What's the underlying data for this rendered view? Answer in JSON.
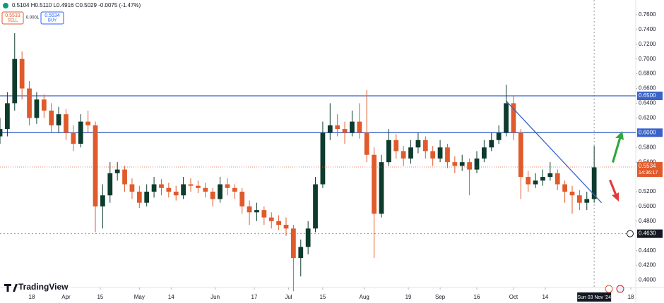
{
  "chart_data": {
    "type": "candlestick",
    "header": {
      "ohlc": "0.5104 H0.5110 L0.4916 C0.5029 -0.0075 (-1.47%)",
      "sell_price": "0.5533",
      "sell_label": "SELL",
      "spread": "0.0001",
      "buy_price": "0.5534",
      "buy_label": "BUY"
    },
    "brand": "TradingView",
    "up_color": "#0d3b2e",
    "down_color": "#e05a2b",
    "line_color": "#3a62c9",
    "xlim": [
      -13,
      247
    ],
    "ylim": [
      0.39,
      0.78
    ],
    "grid": false,
    "xticks": [
      {
        "value": 0,
        "label": "18"
      },
      {
        "value": 14,
        "label": "Apr"
      },
      {
        "value": 28,
        "label": "15"
      },
      {
        "value": 44,
        "label": "May"
      },
      {
        "value": 57,
        "label": "14"
      },
      {
        "value": 75,
        "label": "Jun"
      },
      {
        "value": 91,
        "label": "17"
      },
      {
        "value": 105,
        "label": "Jul"
      },
      {
        "value": 119,
        "label": "15"
      },
      {
        "value": 136,
        "label": "Aug"
      },
      {
        "value": 154,
        "label": "19"
      },
      {
        "value": 167,
        "label": "Sep"
      },
      {
        "value": 182,
        "label": "16"
      },
      {
        "value": 197,
        "label": "Oct"
      },
      {
        "value": 210,
        "label": "14"
      },
      {
        "value": 245,
        "label": "18"
      }
    ],
    "crosshair": {
      "value": 230,
      "label": "Sun 03 Nov '24"
    },
    "yticks": [
      {
        "value": 0.4,
        "label": "0.4000"
      },
      {
        "value": 0.42,
        "label": "0.4200"
      },
      {
        "value": 0.44,
        "label": "0.4400"
      },
      {
        "value": 0.48,
        "label": "0.4800"
      },
      {
        "value": 0.5,
        "label": "0.5000"
      },
      {
        "value": 0.52,
        "label": "0.5200"
      },
      {
        "value": 0.56,
        "label": "0.5600"
      },
      {
        "value": 0.58,
        "label": "0.5800"
      },
      {
        "value": 0.62,
        "label": "0.6200"
      },
      {
        "value": 0.64,
        "label": "0.6400"
      },
      {
        "value": 0.66,
        "label": "0.6600"
      },
      {
        "value": 0.68,
        "label": "0.6800"
      },
      {
        "value": 0.7,
        "label": "0.7000"
      },
      {
        "value": 0.72,
        "label": "0.7200"
      },
      {
        "value": 0.74,
        "label": "0.7400"
      },
      {
        "value": 0.76,
        "label": "0.7600"
      }
    ],
    "hlines": [
      {
        "value": 0.65,
        "label": "0.6500"
      },
      {
        "value": 0.6,
        "label": "0.6000"
      }
    ],
    "marker_line": {
      "value": 0.463,
      "label": "0.4630"
    },
    "last_price": {
      "value": 0.5534,
      "label": "0.5534",
      "countdown": "14:36:17"
    },
    "trendline": {
      "x": [
        194,
        233
      ],
      "y": [
        0.643,
        0.505
      ]
    },
    "candles": {
      "x": [
        -13,
        -10,
        -7,
        -4,
        -1,
        2,
        5,
        8,
        11,
        14,
        17,
        20,
        23,
        26,
        29,
        32,
        35,
        38,
        41,
        44,
        47,
        50,
        53,
        56,
        59,
        62,
        65,
        68,
        71,
        74,
        77,
        80,
        83,
        86,
        89,
        92,
        95,
        98,
        101,
        104,
        107,
        110,
        113,
        116,
        119,
        122,
        125,
        128,
        131,
        134,
        137,
        140,
        143,
        146,
        149,
        152,
        155,
        158,
        161,
        164,
        167,
        170,
        173,
        176,
        179,
        182,
        185,
        188,
        191,
        194,
        197,
        200,
        203,
        206,
        209,
        212,
        215,
        218,
        221,
        224,
        227,
        230
      ],
      "open": [
        0.595,
        0.605,
        0.64,
        0.7,
        0.66,
        0.62,
        0.645,
        0.63,
        0.61,
        0.625,
        0.6,
        0.585,
        0.615,
        0.61,
        0.5,
        0.515,
        0.545,
        0.55,
        0.53,
        0.52,
        0.505,
        0.52,
        0.53,
        0.525,
        0.52,
        0.515,
        0.53,
        0.528,
        0.525,
        0.52,
        0.51,
        0.53,
        0.525,
        0.52,
        0.5,
        0.492,
        0.495,
        0.485,
        0.48,
        0.475,
        0.47,
        0.43,
        0.445,
        0.47,
        0.53,
        0.6,
        0.61,
        0.605,
        0.6,
        0.615,
        0.6,
        0.57,
        0.49,
        0.56,
        0.59,
        0.575,
        0.565,
        0.58,
        0.59,
        0.575,
        0.565,
        0.58,
        0.56,
        0.555,
        0.56,
        0.55,
        0.565,
        0.58,
        0.59,
        0.6,
        0.64,
        0.6,
        0.54,
        0.53,
        0.535,
        0.54,
        0.545,
        0.53,
        0.52,
        0.515,
        0.505,
        0.51
      ],
      "high": [
        0.62,
        0.655,
        0.735,
        0.71,
        0.67,
        0.655,
        0.652,
        0.64,
        0.635,
        0.632,
        0.61,
        0.625,
        0.63,
        0.615,
        0.53,
        0.56,
        0.56,
        0.555,
        0.538,
        0.528,
        0.53,
        0.54,
        0.537,
        0.532,
        0.528,
        0.54,
        0.538,
        0.535,
        0.532,
        0.525,
        0.54,
        0.538,
        0.53,
        0.525,
        0.508,
        0.505,
        0.5,
        0.492,
        0.488,
        0.485,
        0.475,
        0.455,
        0.48,
        0.54,
        0.615,
        0.64,
        0.625,
        0.615,
        0.63,
        0.64,
        0.658,
        0.58,
        0.57,
        0.605,
        0.598,
        0.582,
        0.59,
        0.6,
        0.595,
        0.582,
        0.59,
        0.585,
        0.568,
        0.57,
        0.565,
        0.575,
        0.59,
        0.6,
        0.61,
        0.665,
        0.65,
        0.605,
        0.548,
        0.545,
        0.55,
        0.56,
        0.55,
        0.535,
        0.528,
        0.522,
        0.52,
        0.582
      ],
      "low": [
        0.585,
        0.595,
        0.63,
        0.645,
        0.61,
        0.612,
        0.62,
        0.6,
        0.6,
        0.59,
        0.575,
        0.58,
        0.6,
        0.465,
        0.47,
        0.505,
        0.535,
        0.52,
        0.51,
        0.498,
        0.5,
        0.512,
        0.515,
        0.512,
        0.508,
        0.51,
        0.52,
        0.518,
        0.512,
        0.5,
        0.505,
        0.515,
        0.51,
        0.49,
        0.475,
        0.48,
        0.475,
        0.47,
        0.468,
        0.46,
        0.385,
        0.405,
        0.435,
        0.465,
        0.525,
        0.59,
        0.595,
        0.585,
        0.595,
        0.592,
        0.56,
        0.43,
        0.485,
        0.555,
        0.565,
        0.555,
        0.558,
        0.572,
        0.565,
        0.555,
        0.56,
        0.552,
        0.545,
        0.548,
        0.515,
        0.545,
        0.56,
        0.575,
        0.585,
        0.595,
        0.59,
        0.51,
        0.52,
        0.525,
        0.528,
        0.535,
        0.522,
        0.505,
        0.49,
        0.495,
        0.495,
        0.505
      ],
      "close": [
        0.605,
        0.64,
        0.7,
        0.66,
        0.62,
        0.645,
        0.63,
        0.61,
        0.625,
        0.6,
        0.585,
        0.615,
        0.61,
        0.5,
        0.515,
        0.545,
        0.55,
        0.53,
        0.52,
        0.505,
        0.52,
        0.53,
        0.525,
        0.52,
        0.515,
        0.53,
        0.528,
        0.525,
        0.52,
        0.51,
        0.53,
        0.525,
        0.52,
        0.5,
        0.492,
        0.495,
        0.485,
        0.48,
        0.475,
        0.47,
        0.43,
        0.445,
        0.47,
        0.53,
        0.6,
        0.61,
        0.605,
        0.6,
        0.615,
        0.6,
        0.57,
        0.49,
        0.56,
        0.59,
        0.575,
        0.565,
        0.58,
        0.59,
        0.575,
        0.565,
        0.58,
        0.56,
        0.555,
        0.56,
        0.55,
        0.565,
        0.58,
        0.59,
        0.6,
        0.64,
        0.6,
        0.54,
        0.53,
        0.535,
        0.54,
        0.545,
        0.53,
        0.52,
        0.515,
        0.505,
        0.51,
        0.553
      ]
    }
  }
}
